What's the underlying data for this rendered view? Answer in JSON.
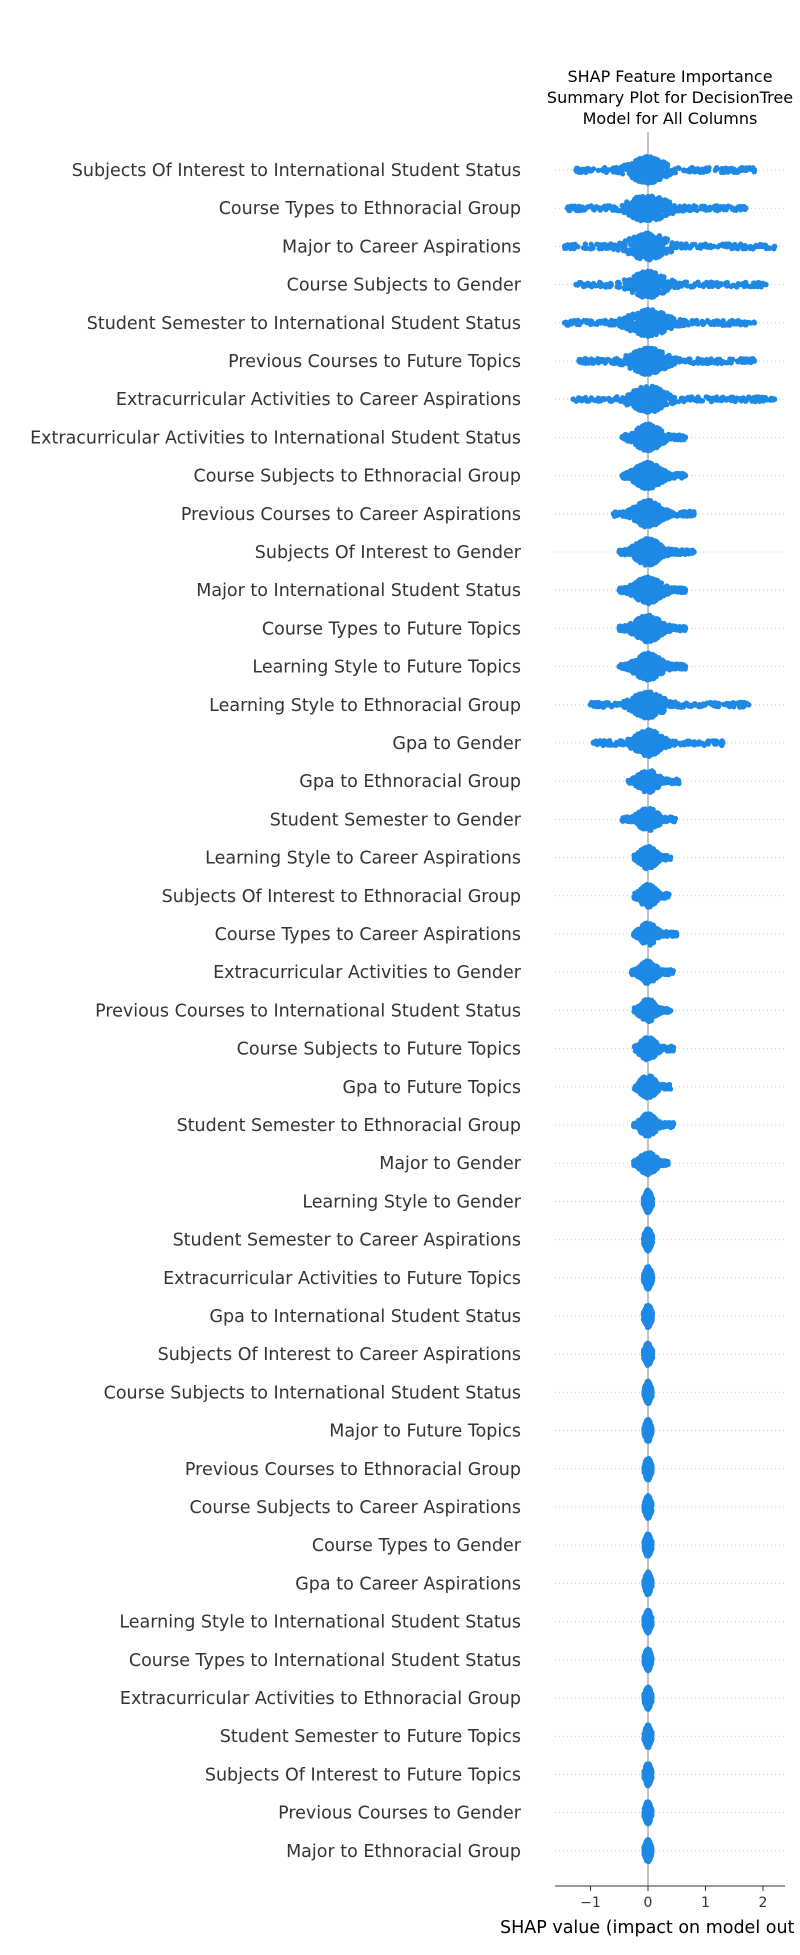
{
  "chart_data": {
    "type": "scatter",
    "title_lines": [
      "SHAP Feature Importance",
      "Summary Plot for DecisionTree",
      "Model for All Columns"
    ],
    "xlabel": "SHAP value (impact on model out",
    "xlim": [
      -1.6,
      2.35
    ],
    "xticks": [
      -1,
      0,
      1,
      2
    ],
    "xtick_labels": [
      "−1",
      "0",
      "1",
      "2"
    ],
    "point_color": "#1e88e5",
    "features": [
      {
        "name": "Subjects Of Interest to International Student Status",
        "min": -1.25,
        "max": 1.85,
        "core": 0.4
      },
      {
        "name": "Course Types to Ethnoracial Group",
        "min": -1.4,
        "max": 1.7,
        "core": 0.45
      },
      {
        "name": "Major to Career Aspirations",
        "min": -1.45,
        "max": 2.2,
        "core": 0.45
      },
      {
        "name": "Course Subjects to Gender",
        "min": -1.25,
        "max": 2.05,
        "core": 0.4
      },
      {
        "name": "Student Semester to International Student Status",
        "min": -1.45,
        "max": 1.85,
        "core": 0.45
      },
      {
        "name": "Previous Courses to Future Topics",
        "min": -1.2,
        "max": 1.85,
        "core": 0.4
      },
      {
        "name": "Extracurricular Activities to Career Aspirations",
        "min": -1.3,
        "max": 2.2,
        "core": 0.4
      },
      {
        "name": "Extracurricular Activities to International Student Status",
        "min": -0.45,
        "max": 0.65,
        "core": 0.3
      },
      {
        "name": "Course Subjects to Ethnoracial Group",
        "min": -0.45,
        "max": 0.65,
        "core": 0.3
      },
      {
        "name": "Previous Courses to Career Aspirations",
        "min": -0.6,
        "max": 0.8,
        "core": 0.3
      },
      {
        "name": "Subjects Of Interest to Gender",
        "min": -0.5,
        "max": 0.8,
        "core": 0.3
      },
      {
        "name": "Major to International Student Status",
        "min": -0.5,
        "max": 0.65,
        "core": 0.3
      },
      {
        "name": "Course Types to Future Topics",
        "min": -0.5,
        "max": 0.65,
        "core": 0.3
      },
      {
        "name": "Learning Style to Future Topics",
        "min": -0.5,
        "max": 0.65,
        "core": 0.3
      },
      {
        "name": "Learning Style to Ethnoracial Group",
        "min": -1.0,
        "max": 1.75,
        "core": 0.35
      },
      {
        "name": "Gpa to Gender",
        "min": -0.95,
        "max": 1.3,
        "core": 0.3
      },
      {
        "name": "Gpa to Ethnoracial Group",
        "min": -0.35,
        "max": 0.55,
        "core": 0.25
      },
      {
        "name": "Student Semester to Gender",
        "min": -0.45,
        "max": 0.5,
        "core": 0.25
      },
      {
        "name": "Learning Style to Career Aspirations",
        "min": -0.25,
        "max": 0.4,
        "core": 0.2
      },
      {
        "name": "Subjects Of Interest to Ethnoracial Group",
        "min": -0.25,
        "max": 0.4,
        "core": 0.2
      },
      {
        "name": "Course Types to Career Aspirations",
        "min": -0.25,
        "max": 0.5,
        "core": 0.2
      },
      {
        "name": "Extracurricular Activities to Gender",
        "min": -0.3,
        "max": 0.45,
        "core": 0.2
      },
      {
        "name": "Previous Courses to International Student Status",
        "min": -0.25,
        "max": 0.4,
        "core": 0.2
      },
      {
        "name": "Course Subjects to Future Topics",
        "min": -0.25,
        "max": 0.45,
        "core": 0.2
      },
      {
        "name": "Gpa to Future Topics",
        "min": -0.25,
        "max": 0.4,
        "core": 0.2
      },
      {
        "name": "Student Semester to Ethnoracial Group",
        "min": -0.25,
        "max": 0.45,
        "core": 0.2
      },
      {
        "name": "Major to Gender",
        "min": -0.25,
        "max": 0.35,
        "core": 0.2
      },
      {
        "name": "Learning Style to Gender",
        "min": -0.08,
        "max": 0.08,
        "core": 0.08
      },
      {
        "name": "Student Semester to Career Aspirations",
        "min": -0.08,
        "max": 0.08,
        "core": 0.08
      },
      {
        "name": "Extracurricular Activities to Future Topics",
        "min": -0.08,
        "max": 0.08,
        "core": 0.08
      },
      {
        "name": "Gpa to International Student Status",
        "min": -0.08,
        "max": 0.08,
        "core": 0.08
      },
      {
        "name": "Subjects Of Interest to Career Aspirations",
        "min": -0.08,
        "max": 0.08,
        "core": 0.08
      },
      {
        "name": "Course Subjects to International Student Status",
        "min": -0.07,
        "max": 0.07,
        "core": 0.07
      },
      {
        "name": "Major to Future Topics",
        "min": -0.07,
        "max": 0.07,
        "core": 0.07
      },
      {
        "name": "Previous Courses to Ethnoracial Group",
        "min": -0.07,
        "max": 0.07,
        "core": 0.07
      },
      {
        "name": "Course Subjects to Career Aspirations",
        "min": -0.07,
        "max": 0.07,
        "core": 0.07
      },
      {
        "name": "Course Types to Gender",
        "min": -0.07,
        "max": 0.07,
        "core": 0.07
      },
      {
        "name": "Gpa to Career Aspirations",
        "min": -0.07,
        "max": 0.07,
        "core": 0.07
      },
      {
        "name": "Learning Style to International Student Status",
        "min": -0.07,
        "max": 0.07,
        "core": 0.07
      },
      {
        "name": "Course Types to International Student Status",
        "min": -0.07,
        "max": 0.07,
        "core": 0.07
      },
      {
        "name": "Extracurricular Activities to Ethnoracial Group",
        "min": -0.07,
        "max": 0.07,
        "core": 0.07
      },
      {
        "name": "Student Semester to Future Topics",
        "min": -0.07,
        "max": 0.07,
        "core": 0.07
      },
      {
        "name": "Subjects Of Interest to Future Topics",
        "min": -0.07,
        "max": 0.07,
        "core": 0.07
      },
      {
        "name": "Previous Courses to Gender",
        "min": -0.07,
        "max": 0.07,
        "core": 0.07
      },
      {
        "name": "Major to Ethnoracial Group",
        "min": -0.07,
        "max": 0.07,
        "core": 0.07
      }
    ]
  }
}
